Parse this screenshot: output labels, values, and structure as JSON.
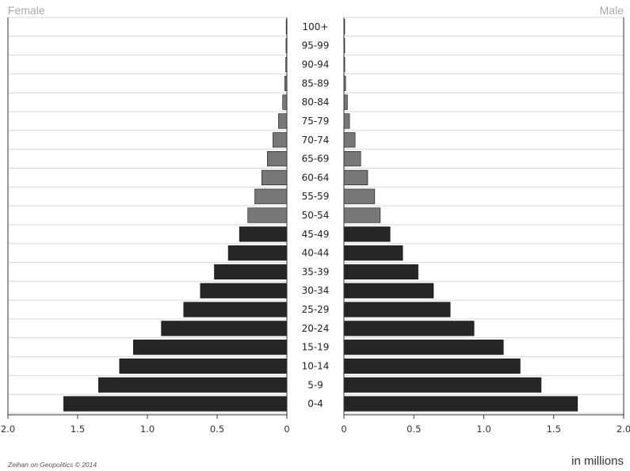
{
  "chart_data": {
    "type": "bar",
    "orientation": "horizontal-pyramid",
    "left_label": "Female",
    "right_label": "Male",
    "units_label": "in millions",
    "source_note": "Zeihan on Geopolitics © 2014",
    "categories": [
      "100+",
      "95-99",
      "90-94",
      "85-89",
      "80-84",
      "75-79",
      "70-74",
      "65-69",
      "60-64",
      "55-59",
      "50-54",
      "45-49",
      "40-44",
      "35-39",
      "30-34",
      "25-29",
      "20-24",
      "15-19",
      "10-14",
      "5-9",
      "0-4"
    ],
    "series": [
      {
        "name": "Female",
        "values": [
          0.005,
          0.006,
          0.008,
          0.015,
          0.03,
          0.06,
          0.1,
          0.14,
          0.18,
          0.23,
          0.28,
          0.34,
          0.42,
          0.52,
          0.62,
          0.74,
          0.9,
          1.1,
          1.2,
          1.35,
          1.6
        ]
      },
      {
        "name": "Male",
        "values": [
          0.003,
          0.004,
          0.006,
          0.012,
          0.025,
          0.04,
          0.08,
          0.12,
          0.17,
          0.22,
          0.26,
          0.33,
          0.42,
          0.53,
          0.64,
          0.76,
          0.93,
          1.14,
          1.26,
          1.41,
          1.67
        ]
      }
    ],
    "xlim": [
      0,
      2.0
    ],
    "x_ticks": [
      "2.0",
      "1.5",
      "1.0",
      "0.5",
      "0"
    ],
    "x_ticks_right": [
      "0",
      "0.5",
      "1.0",
      "1.5",
      "2.0"
    ],
    "grid": true,
    "colors": {
      "bar": "#262626",
      "older_bar": "#777777",
      "gridline": "#d8d8d8"
    }
  }
}
